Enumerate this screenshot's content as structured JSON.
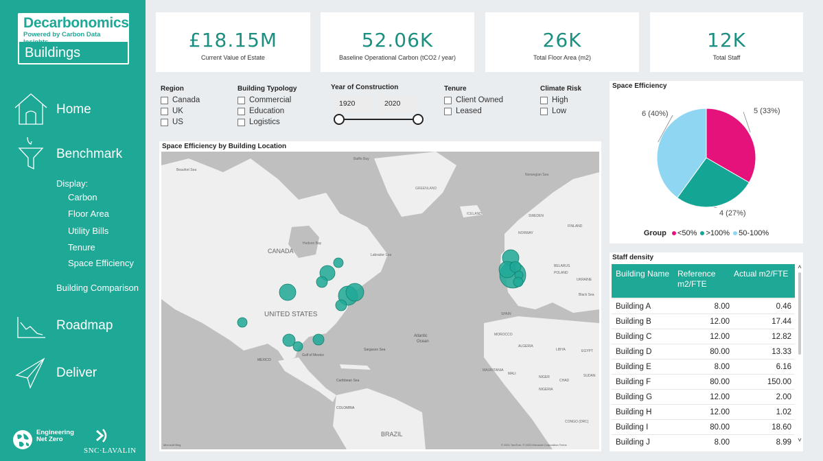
{
  "brand": {
    "title": "Decarbonomics",
    "subtitle": "Powered by Carbon Data Insights",
    "section": "Buildings"
  },
  "nav": {
    "home": "Home",
    "benchmark": "Benchmark",
    "display_label": "Display:",
    "display_items": [
      "Carbon",
      "Floor Area",
      "Utility Bills",
      "Tenure",
      "Space Efficiency"
    ],
    "building_comparison": "Building Comparison",
    "roadmap": "Roadmap",
    "deliver": "Deliver"
  },
  "footer": {
    "enz_line1": "Engineering",
    "enz_line2": "Net Zero",
    "snc": "SNC·LAVALIN"
  },
  "kpis": [
    {
      "value": "£18.15M",
      "label": "Current Value of Estate"
    },
    {
      "value": "52.06K",
      "label": "Baseline Operational Carbon (tCO2 / year)"
    },
    {
      "value": "26K",
      "label": "Total Floor Area (m2)"
    },
    {
      "value": "12K",
      "label": "Total Staff"
    }
  ],
  "filters": {
    "region": {
      "title": "Region",
      "options": [
        "Canada",
        "UK",
        "US"
      ]
    },
    "typology": {
      "title": "Building Typology",
      "options": [
        "Commercial",
        "Education",
        "Logistics"
      ]
    },
    "year": {
      "title": "Year of Construction",
      "min": "1920",
      "max": "2020"
    },
    "tenure": {
      "title": "Tenure",
      "options": [
        "Client Owned",
        "Leased"
      ]
    },
    "climate": {
      "title": "Climate Risk",
      "options": [
        "High",
        "Low"
      ]
    }
  },
  "map": {
    "title": "Space Efficiency by Building Location",
    "labels": {
      "canada": "CANADA",
      "us": "UNITED STATES",
      "hudson": "Hudson Bay",
      "labrador": "Labrador Sea",
      "greenland": "GREENLAND",
      "iceland": "ICELAND",
      "norwegian": "Norwegian Sea",
      "baffin": "Baffin Bay",
      "beaufort": "Beaufort Sea",
      "atlantic1": "Atlantic",
      "atlantic2": "Ocean",
      "sargasso": "Sargasso Sea",
      "gulf": "Gulf of Mexico",
      "mexico": "MEXICO",
      "caribbean": "Caribbean Sea",
      "colombia": "COLOMBIA",
      "brazil": "BRAZIL",
      "algeria": "ALGERIA",
      "libya": "LIBYA",
      "egypt": "EGYPT",
      "mali": "MALI",
      "niger": "NIGER",
      "chad": "CHAD",
      "sudan": "SUDAN",
      "nigeria": "NIGERIA",
      "mauritania": "MAURITANIA",
      "morocco": "MOROCCO",
      "spain": "SPAIN",
      "poland": "POLAND",
      "ukraine": "UKRAINE",
      "sweden": "SWEDEN",
      "finland": "FINLAND",
      "norway": "NORWAY",
      "belarus": "BELARUS",
      "black_sea": "Black Sea",
      "congo": "CONGO (DRC)",
      "attribution": "© 2021 TomTom, © 2022 Microsoft Corporation  Terms",
      "bing": "Microsoft Bing"
    }
  },
  "pie": {
    "title": "Space Efficiency",
    "legend_title": "Group",
    "colors": {
      "lt50": "#e6127c",
      "gt100": "#14a594",
      "mid": "#8fd6f2"
    },
    "slices": [
      {
        "group": "<50%",
        "count": 5,
        "label": "5 (33%)"
      },
      {
        "group": ">100%",
        "count": 4,
        "label": "4 (27%)"
      },
      {
        "group": "50-100%",
        "count": 6,
        "label": "6 (40%)"
      }
    ]
  },
  "staff": {
    "title": "Staff density",
    "headers": [
      "Building Name",
      "Reference m2/FTE",
      "Actual m2/FTE"
    ],
    "rows": [
      [
        "Building A",
        "8.00",
        "0.46"
      ],
      [
        "Building B",
        "12.00",
        "17.44"
      ],
      [
        "Building C",
        "12.00",
        "12.82"
      ],
      [
        "Building D",
        "80.00",
        "13.33"
      ],
      [
        "Building E",
        "8.00",
        "6.16"
      ],
      [
        "Building F",
        "80.00",
        "150.00"
      ],
      [
        "Building G",
        "12.00",
        "2.00"
      ],
      [
        "Building H",
        "12.00",
        "1.02"
      ],
      [
        "Building I",
        "80.00",
        "18.60"
      ],
      [
        "Building J",
        "8.00",
        "8.99"
      ]
    ]
  }
}
